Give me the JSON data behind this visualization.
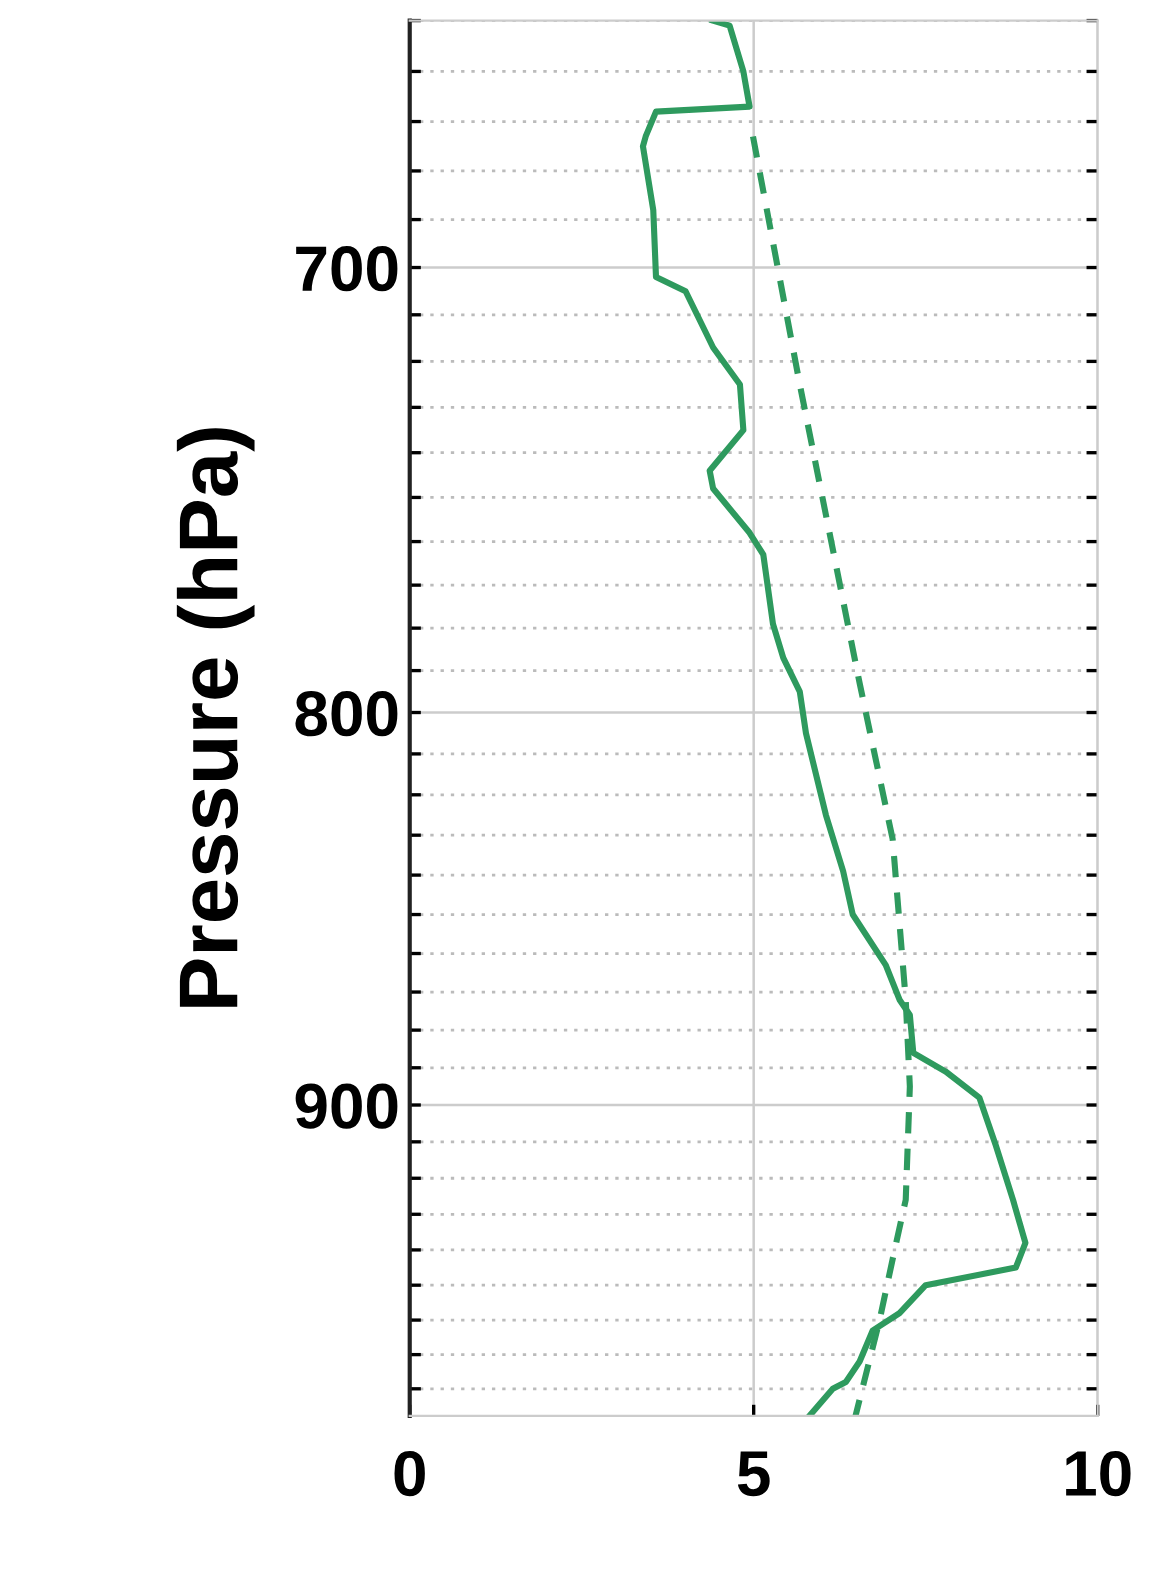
{
  "chart_data": {
    "type": "line",
    "ylabel": "Pressure (hPa)",
    "log": "y",
    "xlim": [
      0,
      10
    ],
    "xticks": [
      0,
      5,
      10
    ],
    "ylim": [
      988,
      650
    ],
    "yticks": [
      {
        "value": 650,
        "label": null
      },
      {
        "value": 660,
        "label": null
      },
      {
        "value": 670,
        "label": null
      },
      {
        "value": 680,
        "label": null
      },
      {
        "value": 690,
        "label": null
      },
      700,
      {
        "value": 710,
        "label": null
      },
      {
        "value": 720,
        "label": null
      },
      {
        "value": 730,
        "label": null
      },
      {
        "value": 740,
        "label": null
      },
      {
        "value": 750,
        "label": null
      },
      {
        "value": 760,
        "label": null
      },
      {
        "value": 770,
        "label": null
      },
      {
        "value": 780,
        "label": null
      },
      {
        "value": 790,
        "label": null
      },
      800,
      {
        "value": 810,
        "label": null
      },
      {
        "value": 820,
        "label": null
      },
      {
        "value": 830,
        "label": null
      },
      {
        "value": 840,
        "label": null
      },
      {
        "value": 850,
        "label": null
      },
      {
        "value": 860,
        "label": null
      },
      {
        "value": 870,
        "label": null
      },
      {
        "value": 880,
        "label": null
      },
      {
        "value": 890,
        "label": null
      },
      900,
      {
        "value": 910,
        "label": null
      },
      {
        "value": 920,
        "label": null
      },
      {
        "value": 930,
        "label": null
      },
      {
        "value": 940,
        "label": null
      },
      {
        "value": 950,
        "label": null
      },
      {
        "value": 960,
        "label": null
      },
      {
        "value": 970,
        "label": null
      },
      {
        "value": 980,
        "label": null
      }
    ],
    "grid": true,
    "orientation": "horizontal",
    "series": [
      {
        "color": "#2e9a5e",
        "line_style": "solid",
        "x": [
          650,
          651,
          660,
          667,
          668,
          673,
          675,
          688,
          702,
          705,
          717,
          725,
          735,
          744,
          748,
          758,
          763,
          779,
          787,
          795,
          805,
          825,
          839,
          850,
          863,
          872,
          876,
          886,
          891,
          898,
          911,
          926,
          938,
          945,
          950,
          958,
          963,
          972,
          978,
          980,
          988
        ],
        "values": [
          4.4,
          4.65,
          4.85,
          4.94,
          3.58,
          3.43,
          3.39,
          3.54,
          3.58,
          4.01,
          4.41,
          4.8,
          4.85,
          4.36,
          4.41,
          4.94,
          5.14,
          5.28,
          5.43,
          5.67,
          5.76,
          6.05,
          6.3,
          6.44,
          6.92,
          7.12,
          7.27,
          7.32,
          7.79,
          8.28,
          8.52,
          8.77,
          8.95,
          8.81,
          7.5,
          7.12,
          6.73,
          6.54,
          6.34,
          6.15,
          5.81
        ]
      },
      {
        "color": "#2e9a5e",
        "line_style": "dashed",
        "x": [
          673,
          725,
          793,
          831,
          872,
          895,
          926,
          939,
          960,
          988
        ],
        "values": [
          4.99,
          5.67,
          6.54,
          7.02,
          7.21,
          7.27,
          7.21,
          7.06,
          6.83,
          6.48
        ]
      }
    ]
  }
}
